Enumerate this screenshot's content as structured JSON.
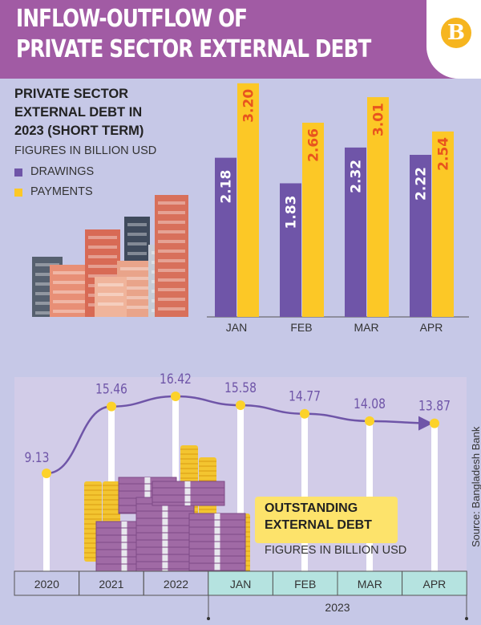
{
  "header": {
    "title_line1": "INFLOW-OUTFLOW OF",
    "title_line2": "PRIVATE SECTOR EXTERNAL DEBT",
    "logo": "B"
  },
  "source": "Source: Bangladesh Bank",
  "colors": {
    "header": "#a15ba4",
    "background": "#c6c8e7",
    "drawings": "#6f55a8",
    "payments": "#fcc826",
    "payment_label": "#e8541e",
    "line": "#6f55a8",
    "point": "#fcd22a",
    "axis_2023": "#b5e3e0"
  },
  "chart_data": [
    {
      "type": "bar",
      "title_lines": [
        "PRIVATE SECTOR",
        "EXTERNAL DEBT IN",
        "2023 (SHORT TERM)"
      ],
      "subtitle": "FIGURES IN BILLION USD",
      "categories": [
        "JAN",
        "FEB",
        "MAR",
        "APR"
      ],
      "series": [
        {
          "name": "DRAWINGS",
          "values": [
            2.18,
            1.83,
            2.32,
            2.22
          ],
          "labels": [
            "2.18",
            "1.83",
            "2.32",
            "2.22"
          ]
        },
        {
          "name": "PAYMENTS",
          "values": [
            3.2,
            2.66,
            3.01,
            2.54
          ],
          "labels": [
            "3.20",
            "2.66",
            "3.01",
            "2.54"
          ]
        }
      ],
      "legend": "top-left",
      "grid": false
    },
    {
      "type": "line",
      "title_lines": [
        "OUTSTANDING",
        "EXTERNAL DEBT"
      ],
      "subtitle": "FIGURES IN BILLION USD",
      "categories": [
        "2020",
        "2021",
        "2022",
        "JAN",
        "FEB",
        "MAR",
        "APR"
      ],
      "group_label": "2023",
      "values": [
        9.13,
        15.46,
        16.42,
        15.58,
        14.77,
        14.08,
        13.87
      ],
      "labels": [
        "9.13",
        "15.46",
        "16.42",
        "15.58",
        "14.77",
        "14.08",
        "13.87"
      ],
      "grid": false
    }
  ]
}
